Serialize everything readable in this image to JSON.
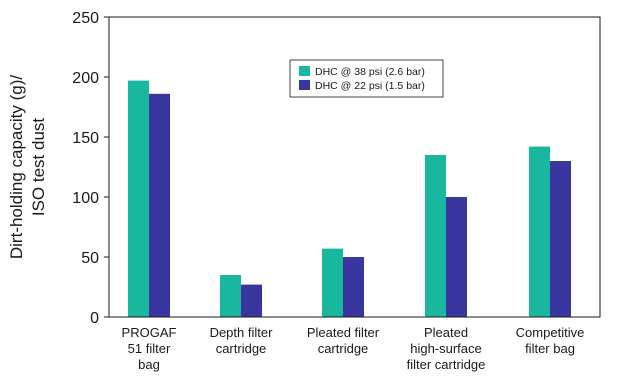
{
  "chart_data": {
    "type": "bar",
    "ylabel_lines": [
      "Dirt-holding capacity (g)/",
      "ISO test dust"
    ],
    "xlabel": "",
    "ylim": [
      0,
      250
    ],
    "yticks": [
      0,
      50,
      100,
      150,
      200,
      250
    ],
    "grid": false,
    "legend_position": "top-center",
    "categories": [
      [
        "PROGAF",
        "51 filter",
        "bag"
      ],
      [
        "Depth filter",
        "cartridge"
      ],
      [
        "Pleated filter",
        "cartridge"
      ],
      [
        "Pleated",
        "high-surface",
        "filter cartridge"
      ],
      [
        "Competitive",
        "filter bag"
      ]
    ],
    "series": [
      {
        "name": "DHC @ 38 psi (2.6 bar)",
        "color": "#19b79e",
        "values": [
          197,
          35,
          57,
          135,
          142
        ]
      },
      {
        "name": "DHC @ 22 psi (1.5 bar)",
        "color": "#3a36a0",
        "values": [
          186,
          27,
          50,
          100,
          130
        ]
      }
    ]
  }
}
